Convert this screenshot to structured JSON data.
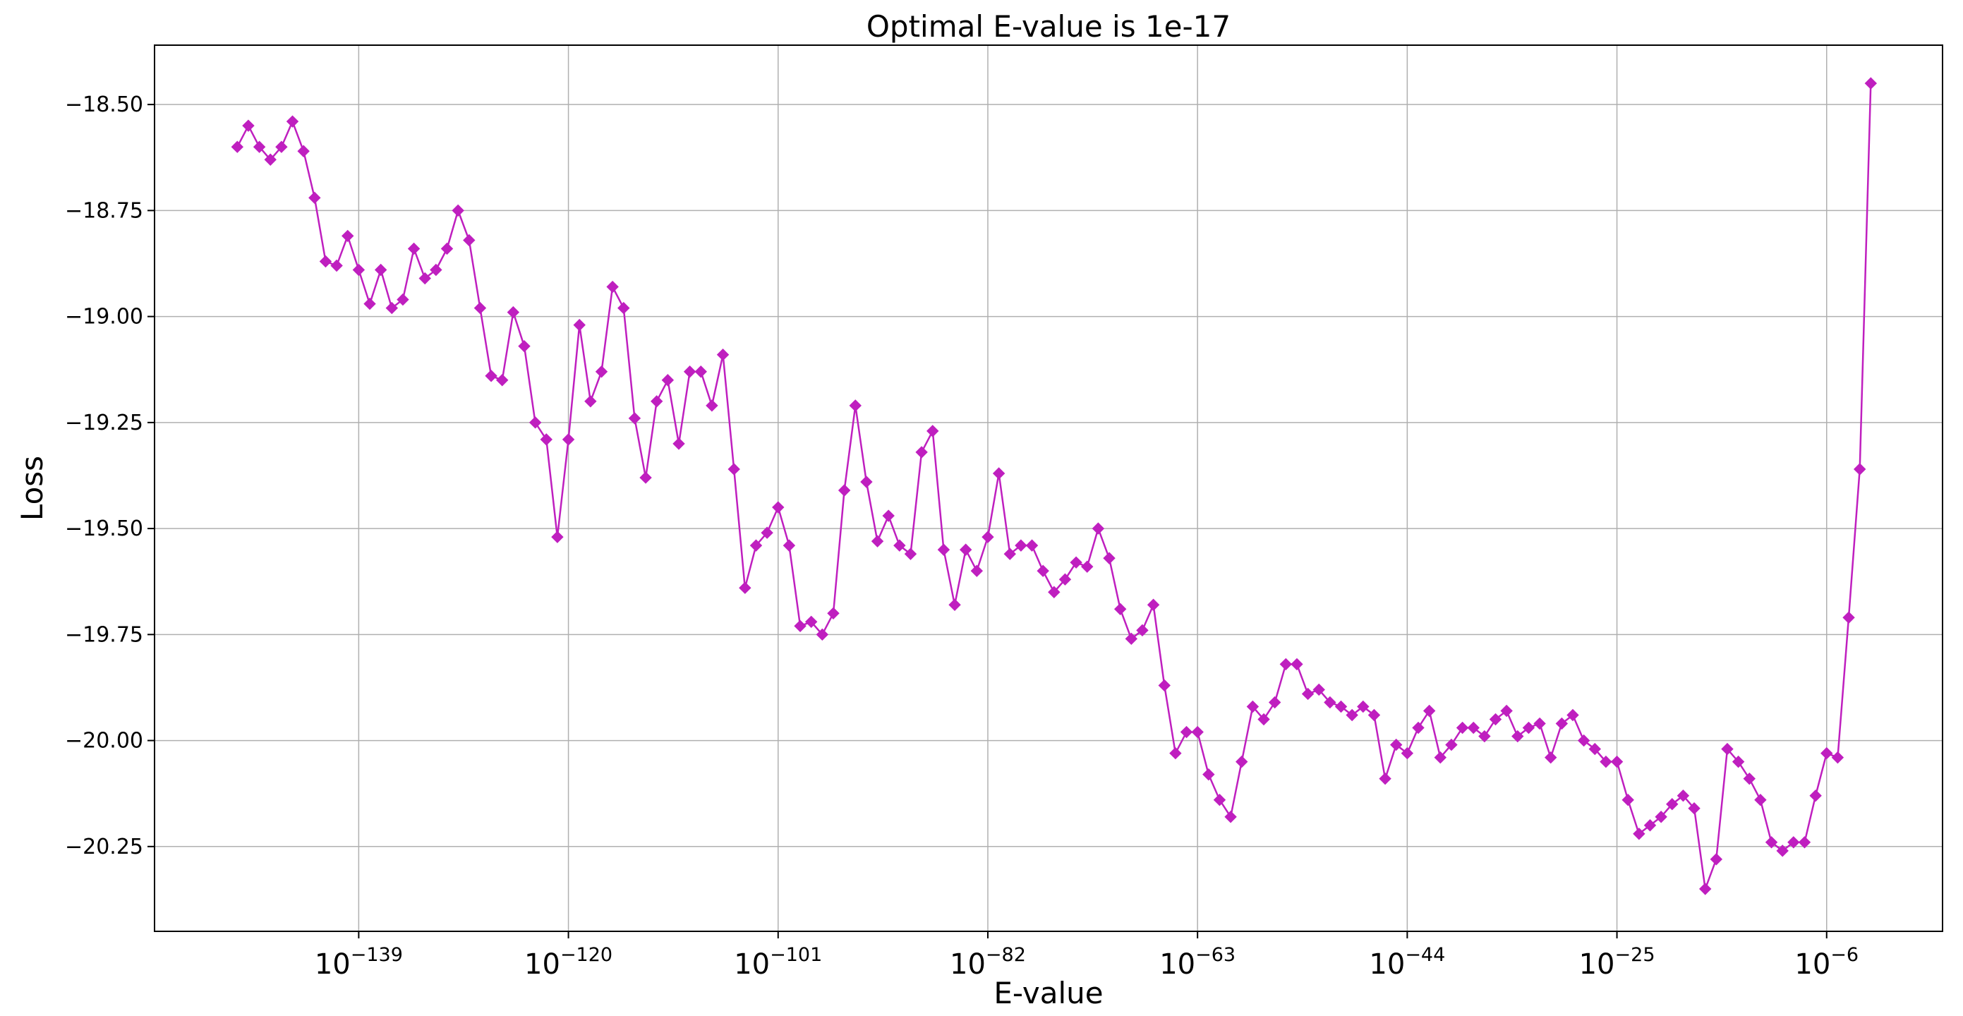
{
  "chart_data": {
    "type": "line",
    "title": "Optimal E-value is 1e-17",
    "xlabel": "E-value",
    "ylabel": "Loss",
    "x_scale": "log",
    "x_unit": "log10(E-value)",
    "xticks": [
      -139,
      -120,
      -101,
      -82,
      -63,
      -44,
      -25,
      -6
    ],
    "xtick_labels": [
      {
        "base": "10",
        "exp": "−139"
      },
      {
        "base": "10",
        "exp": "−120"
      },
      {
        "base": "10",
        "exp": "−101"
      },
      {
        "base": "10",
        "exp": "−82"
      },
      {
        "base": "10",
        "exp": "−63"
      },
      {
        "base": "10",
        "exp": "−44"
      },
      {
        "base": "10",
        "exp": "−25"
      },
      {
        "base": "10",
        "exp": "−6"
      }
    ],
    "yticks": [
      -18.5,
      -18.75,
      -19.0,
      -19.25,
      -19.5,
      -19.75,
      -20.0,
      -20.25
    ],
    "ytick_labels": [
      "−18.50",
      "−18.75",
      "−19.00",
      "−19.25",
      "−19.50",
      "−19.75",
      "−20.00",
      "−20.25"
    ],
    "xlim": [
      -157.5,
      4.5
    ],
    "ylim": [
      -20.45,
      -18.36
    ],
    "grid": true,
    "color": "#bf1fbf",
    "marker": "diamond",
    "x_start": -150,
    "x_step": 1,
    "series": [
      {
        "name": "",
        "values": [
          -18.6,
          -18.55,
          -18.6,
          -18.63,
          -18.6,
          -18.54,
          -18.61,
          -18.72,
          -18.87,
          -18.88,
          -18.81,
          -18.89,
          -18.97,
          -18.89,
          -18.98,
          -18.96,
          -18.84,
          -18.91,
          -18.89,
          -18.84,
          -18.75,
          -18.82,
          -18.98,
          -19.14,
          -19.15,
          -18.99,
          -19.07,
          -19.25,
          -19.29,
          -19.52,
          -19.29,
          -19.02,
          -19.2,
          -19.13,
          -18.93,
          -18.98,
          -19.24,
          -19.38,
          -19.2,
          -19.15,
          -19.3,
          -19.13,
          -19.13,
          -19.21,
          -19.09,
          -19.36,
          -19.64,
          -19.54,
          -19.51,
          -19.45,
          -19.54,
          -19.73,
          -19.72,
          -19.75,
          -19.7,
          -19.41,
          -19.21,
          -19.39,
          -19.53,
          -19.47,
          -19.54,
          -19.56,
          -19.32,
          -19.27,
          -19.55,
          -19.68,
          -19.55,
          -19.6,
          -19.52,
          -19.37,
          -19.56,
          -19.54,
          -19.54,
          -19.6,
          -19.65,
          -19.62,
          -19.58,
          -19.59,
          -19.5,
          -19.57,
          -19.69,
          -19.76,
          -19.74,
          -19.68,
          -19.87,
          -20.03,
          -19.98,
          -19.98,
          -20.08,
          -20.14,
          -20.18,
          -20.05,
          -19.92,
          -19.95,
          -19.91,
          -19.82,
          -19.82,
          -19.89,
          -19.88,
          -19.91,
          -19.92,
          -19.94,
          -19.92,
          -19.94,
          -20.09,
          -20.01,
          -20.03,
          -19.97,
          -19.93,
          -20.04,
          -20.01,
          -19.97,
          -19.97,
          -19.99,
          -19.95,
          -19.93,
          -19.99,
          -19.97,
          -19.96,
          -20.04,
          -19.96,
          -19.94,
          -20.0,
          -20.02,
          -20.05,
          -20.05,
          -20.14,
          -20.22,
          -20.2,
          -20.18,
          -20.15,
          -20.13,
          -20.16,
          -20.35,
          -20.28,
          -20.02,
          -20.05,
          -20.09,
          -20.14,
          -20.24,
          -20.26,
          -20.24,
          -20.24,
          -20.13,
          -20.03,
          -20.04,
          -19.71,
          -19.36,
          -18.45
        ]
      }
    ]
  }
}
